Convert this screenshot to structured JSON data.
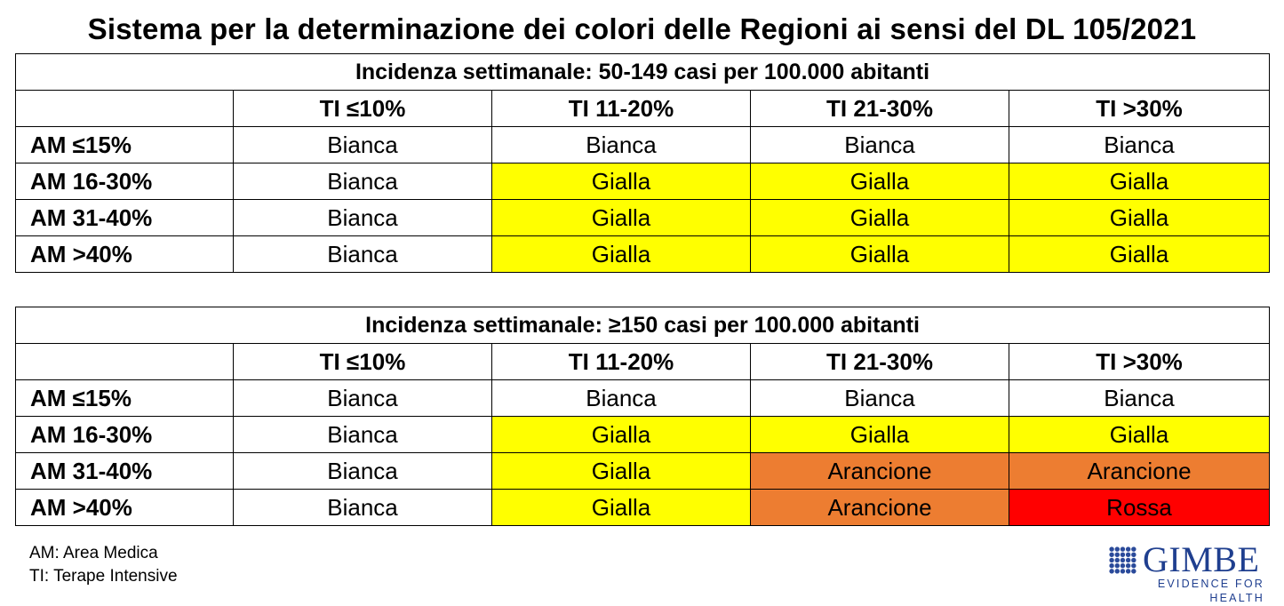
{
  "title": "Sistema per la determinazione dei colori delle Regioni ai sensi del DL 105/2021",
  "colors": {
    "Bianca": "#ffffff",
    "Gialla": "#ffff00",
    "Arancione": "#ed7d31",
    "Rossa": "#ff0000"
  },
  "tables": [
    {
      "caption": "Incidenza settimanale: 50-149 casi per 100.000 abitanti",
      "columns": [
        "TI ≤10%",
        "TI 11-20%",
        "TI 21-30%",
        "TI >30%"
      ],
      "rows": [
        {
          "label": "AM ≤15%",
          "cells": [
            "Bianca",
            "Bianca",
            "Bianca",
            "Bianca"
          ]
        },
        {
          "label": "AM 16-30%",
          "cells": [
            "Bianca",
            "Gialla",
            "Gialla",
            "Gialla"
          ]
        },
        {
          "label": "AM 31-40%",
          "cells": [
            "Bianca",
            "Gialla",
            "Gialla",
            "Gialla"
          ]
        },
        {
          "label": "AM >40%",
          "cells": [
            "Bianca",
            "Gialla",
            "Gialla",
            "Gialla"
          ]
        }
      ]
    },
    {
      "caption": "Incidenza settimanale: ≥150 casi per 100.000 abitanti",
      "columns": [
        "TI ≤10%",
        "TI 11-20%",
        "TI 21-30%",
        "TI >30%"
      ],
      "rows": [
        {
          "label": "AM ≤15%",
          "cells": [
            "Bianca",
            "Bianca",
            "Bianca",
            "Bianca"
          ]
        },
        {
          "label": "AM 16-30%",
          "cells": [
            "Bianca",
            "Gialla",
            "Gialla",
            "Gialla"
          ]
        },
        {
          "label": "AM 31-40%",
          "cells": [
            "Bianca",
            "Gialla",
            "Arancione",
            "Arancione"
          ]
        },
        {
          "label": "AM >40%",
          "cells": [
            "Bianca",
            "Gialla",
            "Arancione",
            "Rossa"
          ]
        }
      ]
    }
  ],
  "legend": {
    "am": "AM: Area Medica",
    "ti": "TI: Terape Intensive"
  },
  "logo": {
    "name": "GIMBE",
    "tagline": "EVIDENCE FOR HEALTH",
    "icon": "grid-dots-icon"
  }
}
